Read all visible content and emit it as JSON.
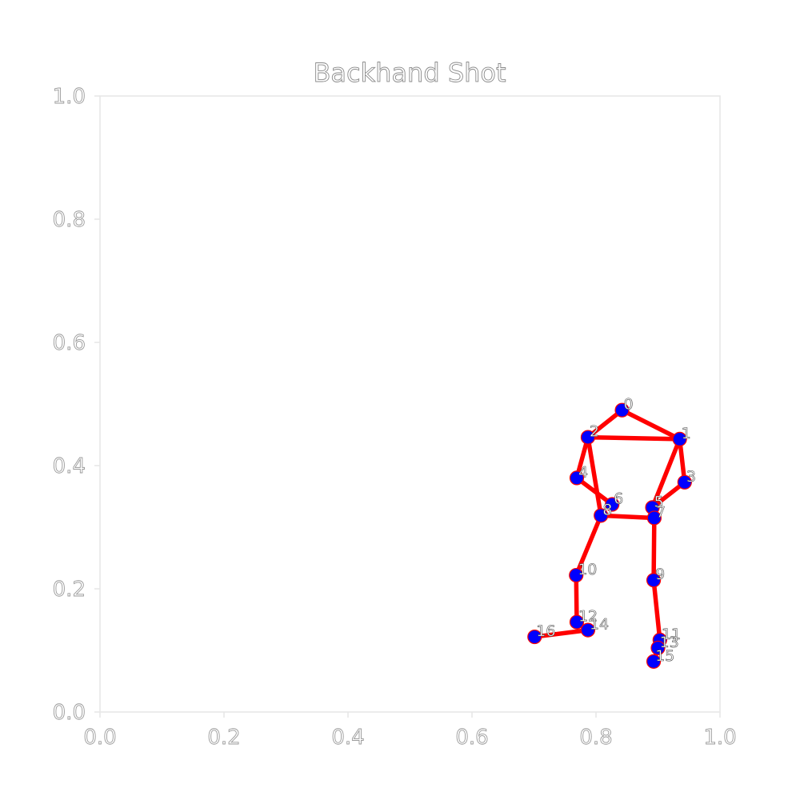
{
  "chart_data": {
    "type": "scatter",
    "title": "Backhand Shot",
    "xlabel": "",
    "ylabel": "",
    "xlim": [
      0.0,
      1.0
    ],
    "ylim": [
      0.0,
      1.0
    ],
    "x_ticks": [
      "0.0",
      "0.2",
      "0.4",
      "0.6",
      "0.8",
      "1.0"
    ],
    "y_ticks": [
      "0.0",
      "0.2",
      "0.4",
      "0.6",
      "0.8",
      "1.0"
    ],
    "grid": false,
    "colors": {
      "edge": "#ff0000",
      "joint_fill": "#0000ff",
      "joint_outline": "#ff0000"
    },
    "points": [
      {
        "label": "0",
        "x": 0.842,
        "y": 0.49
      },
      {
        "label": "1",
        "x": 0.935,
        "y": 0.443
      },
      {
        "label": "2",
        "x": 0.787,
        "y": 0.446
      },
      {
        "label": "3",
        "x": 0.943,
        "y": 0.373
      },
      {
        "label": "4",
        "x": 0.769,
        "y": 0.38
      },
      {
        "label": "5",
        "x": 0.891,
        "y": 0.332
      },
      {
        "label": "6",
        "x": 0.826,
        "y": 0.337
      },
      {
        "label": "7",
        "x": 0.894,
        "y": 0.315
      },
      {
        "label": "8",
        "x": 0.808,
        "y": 0.319
      },
      {
        "label": "9",
        "x": 0.893,
        "y": 0.214
      },
      {
        "label": "10",
        "x": 0.768,
        "y": 0.222
      },
      {
        "label": "11",
        "x": 0.903,
        "y": 0.117
      },
      {
        "label": "12",
        "x": 0.769,
        "y": 0.146
      },
      {
        "label": "13",
        "x": 0.9,
        "y": 0.104
      },
      {
        "label": "14",
        "x": 0.787,
        "y": 0.133
      },
      {
        "label": "15",
        "x": 0.893,
        "y": 0.082
      },
      {
        "label": "16",
        "x": 0.701,
        "y": 0.122
      }
    ],
    "edges": [
      [
        0,
        1
      ],
      [
        0,
        2
      ],
      [
        1,
        2
      ],
      [
        1,
        3
      ],
      [
        3,
        5
      ],
      [
        1,
        5
      ],
      [
        2,
        4
      ],
      [
        4,
        6
      ],
      [
        2,
        8
      ],
      [
        5,
        7
      ],
      [
        7,
        8
      ],
      [
        8,
        10
      ],
      [
        10,
        12
      ],
      [
        12,
        14
      ],
      [
        14,
        16
      ],
      [
        7,
        9
      ],
      [
        9,
        11
      ],
      [
        11,
        13
      ],
      [
        13,
        15
      ]
    ]
  }
}
